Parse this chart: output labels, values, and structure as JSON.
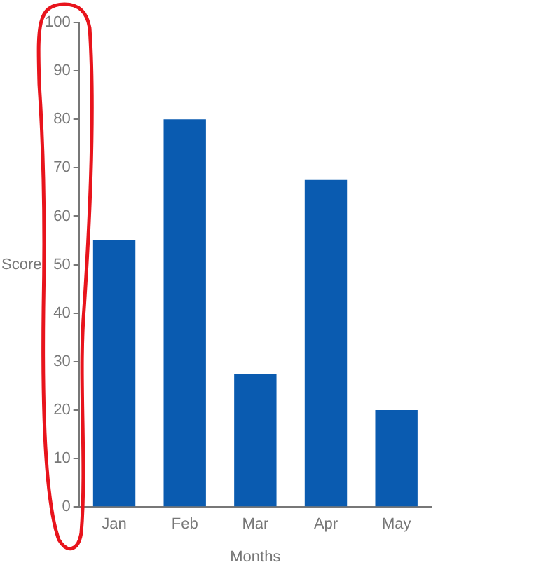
{
  "chart_data": {
    "type": "bar",
    "xlabel": "Months",
    "ylabel": "Score",
    "categories": [
      "Jan",
      "Feb",
      "Mar",
      "Apr",
      "May"
    ],
    "values": [
      55,
      80,
      27.5,
      67.5,
      20
    ],
    "color": "#0a5bb0",
    "ylim": [
      0,
      100
    ],
    "yticks": [
      0,
      10,
      20,
      30,
      40,
      50,
      60,
      70,
      80,
      90,
      100
    ],
    "grid": false,
    "legend": false
  }
}
